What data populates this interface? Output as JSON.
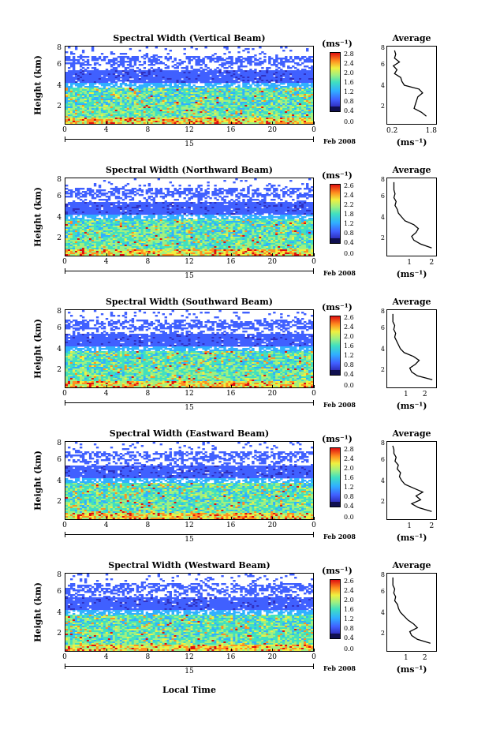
{
  "figure": {
    "x_axis_label": "Local Time",
    "ylabel": "Height (km)",
    "units": "(ms⁻¹)",
    "month_label": "Feb 2008",
    "day_label": "15",
    "avg_title": "Average",
    "avg_units": "(ms⁻¹)"
  },
  "colorscale": {
    "colors": [
      "#101050",
      "#3030c0",
      "#4060ff",
      "#30b0ff",
      "#40e0c0",
      "#a0f080",
      "#f0f040",
      "#ff9020",
      "#e01010"
    ],
    "tick_labels_type1": [
      "2.8",
      "2.4",
      "2.0",
      "1.6",
      "1.2",
      "0.8",
      "0.4",
      "0.0"
    ],
    "tick_labels_type2": [
      "2.6",
      "2.4",
      "2.2",
      "1.8",
      "1.2",
      "0.8",
      "0.4",
      "0.0"
    ]
  },
  "chart_data": [
    {
      "type": "heatmap",
      "title": "Spectral Width (Vertical Beam)",
      "x_ticks": [
        "0",
        "4",
        "8",
        "12",
        "16",
        "20",
        "0"
      ],
      "y_ticks": [
        "8",
        "6",
        "4",
        "2"
      ],
      "xlim": [
        0,
        24
      ],
      "ylim": [
        0,
        8
      ],
      "colorbar_labels": [
        "2.8",
        "2.4",
        "2.0",
        "1.6",
        "1.2",
        "0.8",
        "0.4",
        "0.0"
      ],
      "avg_xticks": [
        "0.2",
        "1.8"
      ],
      "avg_xlim": [
        0.0,
        2.0
      ],
      "avg_profile": {
        "height_km": [
          0.8,
          1.2,
          1.6,
          2.0,
          2.4,
          2.8,
          3.2,
          3.6,
          4.0,
          4.4,
          4.8,
          5.2,
          5.6,
          6.0,
          6.4,
          6.8,
          7.2,
          7.6
        ],
        "width_ms": [
          1.6,
          1.4,
          1.1,
          1.15,
          1.2,
          1.25,
          1.45,
          1.3,
          0.7,
          0.6,
          0.55,
          0.3,
          0.4,
          0.25,
          0.5,
          0.3,
          0.35,
          0.3
        ]
      }
    },
    {
      "type": "heatmap",
      "title": "Spectral Width (Northward Beam)",
      "x_ticks": [
        "0",
        "4",
        "8",
        "12",
        "16",
        "20",
        "0"
      ],
      "y_ticks": [
        "8",
        "6",
        "4",
        "2"
      ],
      "xlim": [
        0,
        24
      ],
      "ylim": [
        0,
        8
      ],
      "colorbar_labels": [
        "2.6",
        "2.4",
        "2.2",
        "1.8",
        "1.2",
        "0.8",
        "0.4",
        "0.0"
      ],
      "avg_xticks": [
        "1",
        "2"
      ],
      "avg_xlim": [
        0.0,
        2.2
      ],
      "avg_profile": {
        "height_km": [
          0.8,
          1.2,
          1.6,
          2.0,
          2.4,
          2.8,
          3.2,
          3.6,
          4.0,
          4.4,
          4.8,
          5.2,
          5.6,
          6.0,
          6.4,
          6.8,
          7.2,
          7.6
        ],
        "width_ms": [
          2.0,
          1.5,
          1.2,
          1.1,
          1.3,
          1.4,
          1.2,
          0.8,
          0.65,
          0.5,
          0.45,
          0.35,
          0.4,
          0.3,
          0.35,
          0.3,
          0.3,
          0.3
        ]
      }
    },
    {
      "type": "heatmap",
      "title": "Spectral Width (Southward Beam)",
      "x_ticks": [
        "0",
        "4",
        "8",
        "12",
        "16",
        "20",
        "0"
      ],
      "y_ticks": [
        "8",
        "6",
        "4",
        "2"
      ],
      "xlim": [
        0,
        24
      ],
      "ylim": [
        0,
        8
      ],
      "colorbar_labels": [
        "2.6",
        "2.4",
        "2.0",
        "1.6",
        "1.2",
        "0.8",
        "0.4",
        "0.0"
      ],
      "avg_xticks": [
        "1",
        "2"
      ],
      "avg_xlim": [
        0.0,
        2.6
      ],
      "avg_profile": {
        "height_km": [
          0.8,
          1.2,
          1.6,
          2.0,
          2.4,
          2.8,
          3.2,
          3.6,
          4.0,
          4.4,
          4.8,
          5.2,
          5.6,
          6.0,
          6.4,
          6.8,
          7.2,
          7.6
        ],
        "width_ms": [
          2.4,
          1.6,
          1.3,
          1.2,
          1.5,
          1.7,
          1.4,
          0.9,
          0.7,
          0.6,
          0.5,
          0.4,
          0.45,
          0.35,
          0.4,
          0.3,
          0.3,
          0.3
        ]
      }
    },
    {
      "type": "heatmap",
      "title": "Spectral Width (Eastward Beam)",
      "x_ticks": [
        "0",
        "4",
        "8",
        "12",
        "16",
        "20",
        "0"
      ],
      "y_ticks": [
        "8",
        "6",
        "4",
        "2"
      ],
      "xlim": [
        0,
        24
      ],
      "ylim": [
        0,
        8
      ],
      "colorbar_labels": [
        "2.8",
        "2.4",
        "2.0",
        "1.6",
        "1.2",
        "0.8",
        "0.4",
        "0.0"
      ],
      "avg_xticks": [
        "1",
        "2"
      ],
      "avg_xlim": [
        0.0,
        2.2
      ],
      "avg_profile": {
        "height_km": [
          0.8,
          1.2,
          1.6,
          2.0,
          2.4,
          2.8,
          3.2,
          3.6,
          4.0,
          4.4,
          4.8,
          5.2,
          5.6,
          6.0,
          6.4,
          6.8,
          7.2,
          7.6
        ],
        "width_ms": [
          2.0,
          1.4,
          1.1,
          1.5,
          1.3,
          1.6,
          1.2,
          0.8,
          0.65,
          0.55,
          0.6,
          0.45,
          0.5,
          0.35,
          0.4,
          0.3,
          0.3,
          0.25
        ]
      }
    },
    {
      "type": "heatmap",
      "title": "Spectral Width (Westward Beam)",
      "x_ticks": [
        "0",
        "4",
        "8",
        "12",
        "16",
        "20",
        "0"
      ],
      "y_ticks": [
        "8",
        "6",
        "4",
        "2"
      ],
      "xlim": [
        0,
        24
      ],
      "ylim": [
        0,
        8
      ],
      "colorbar_labels": [
        "2.6",
        "2.4",
        "2.0",
        "1.6",
        "1.2",
        "0.8",
        "0.4",
        "0.0"
      ],
      "avg_xticks": [
        "1",
        "2"
      ],
      "avg_xlim": [
        0.0,
        2.6
      ],
      "avg_profile": {
        "height_km": [
          0.8,
          1.2,
          1.6,
          2.0,
          2.4,
          2.8,
          3.2,
          3.6,
          4.0,
          4.4,
          4.8,
          5.2,
          5.6,
          6.0,
          6.4,
          6.8,
          7.2,
          7.6
        ],
        "width_ms": [
          2.3,
          1.6,
          1.3,
          1.2,
          1.6,
          1.4,
          1.1,
          0.9,
          0.7,
          0.6,
          0.55,
          0.4,
          0.45,
          0.35,
          0.4,
          0.3,
          0.3,
          0.3
        ]
      }
    }
  ]
}
